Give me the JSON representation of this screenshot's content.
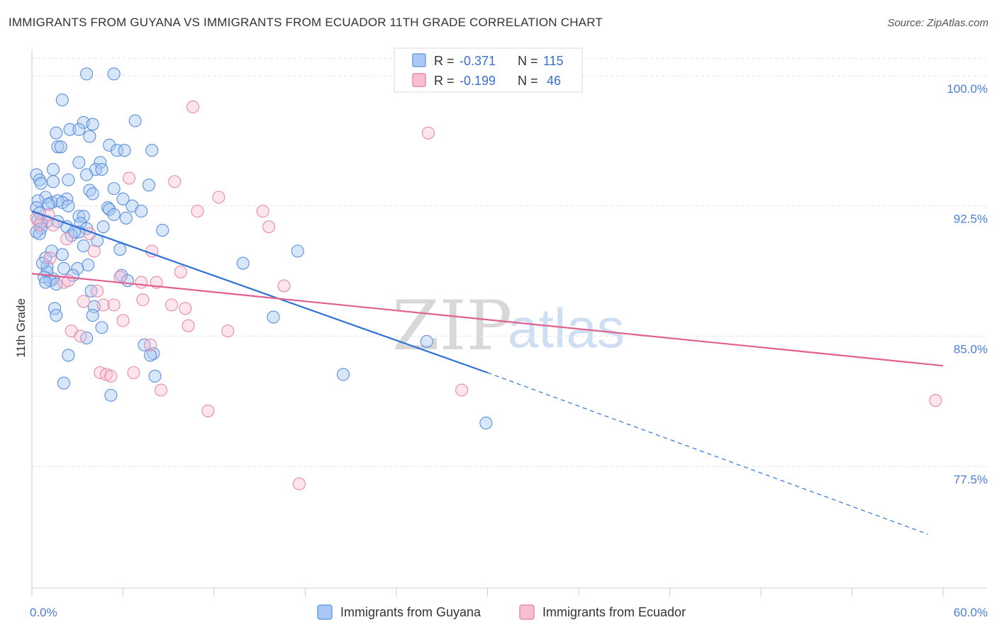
{
  "header": {
    "title": "IMMIGRANTS FROM GUYANA VS IMMIGRANTS FROM ECUADOR 11TH GRADE CORRELATION CHART",
    "source": "Source: ZipAtlas.com"
  },
  "watermark": {
    "zip": "ZIP",
    "atlas": "atlas"
  },
  "legend_top": {
    "rows": [
      {
        "r_label": "R =",
        "r_value": "-0.371",
        "n_label": "N =",
        "n_value": "115",
        "color": "#a9c8f5",
        "border": "#6f9fe0"
      },
      {
        "r_label": "R =",
        "r_value": "-0.199",
        "n_label": "N =",
        "n_value": "46",
        "color": "#f8bfd2",
        "border": "#e88aab"
      }
    ]
  },
  "legend_bottom": {
    "items": [
      {
        "label": "Immigrants from Guyana",
        "color": "#a9c8f5",
        "border": "#6f9fe0"
      },
      {
        "label": "Immigrants from Ecuador",
        "color": "#f8bfd2",
        "border": "#e88aab"
      }
    ]
  },
  "chart_data": {
    "type": "scatter",
    "title": "IMMIGRANTS FROM GUYANA VS IMMIGRANTS FROM ECUADOR 11TH GRADE CORRELATION CHART",
    "xlabel": "",
    "ylabel": "11th Grade",
    "xlim": [
      0,
      60
    ],
    "ylim": [
      70.5,
      101.5
    ],
    "x_tick_labels": [
      "0.0%",
      "60.0%"
    ],
    "y_ticks": [
      77.5,
      85.0,
      92.5,
      100.0
    ],
    "y_tick_labels": [
      "77.5%",
      "85.0%",
      "92.5%",
      "100.0%"
    ],
    "grid": true,
    "colors": {
      "guyana": "#4f86d9",
      "ecuador": "#e56d97",
      "guyana_line": "#2f72d6",
      "ecuador_line": "#e0608f"
    },
    "series": [
      {
        "name": "Immigrants from Guyana",
        "color": "#4f86d9",
        "points": [
          [
            3.6,
            100.1
          ],
          [
            5.4,
            100.1
          ],
          [
            2.0,
            98.6
          ],
          [
            3.4,
            97.3
          ],
          [
            4.0,
            97.2
          ],
          [
            6.8,
            97.4
          ],
          [
            2.5,
            96.9
          ],
          [
            3.1,
            96.9
          ],
          [
            1.6,
            96.7
          ],
          [
            3.8,
            96.5
          ],
          [
            1.7,
            95.9
          ],
          [
            1.9,
            95.9
          ],
          [
            5.1,
            96.0
          ],
          [
            5.6,
            95.7
          ],
          [
            6.1,
            95.7
          ],
          [
            7.9,
            95.7
          ],
          [
            3.1,
            95.0
          ],
          [
            4.5,
            95.0
          ],
          [
            1.4,
            94.6
          ],
          [
            4.2,
            94.6
          ],
          [
            0.3,
            94.3
          ],
          [
            3.6,
            94.3
          ],
          [
            4.6,
            94.6
          ],
          [
            0.5,
            94.0
          ],
          [
            1.4,
            93.9
          ],
          [
            2.4,
            94.0
          ],
          [
            0.6,
            93.8
          ],
          [
            7.7,
            93.7
          ],
          [
            3.8,
            93.4
          ],
          [
            4.0,
            93.2
          ],
          [
            5.4,
            93.5
          ],
          [
            0.9,
            93.0
          ],
          [
            2.3,
            92.9
          ],
          [
            0.4,
            92.8
          ],
          [
            1.3,
            92.7
          ],
          [
            1.7,
            92.8
          ],
          [
            2.0,
            92.7
          ],
          [
            1.1,
            92.6
          ],
          [
            2.4,
            92.5
          ],
          [
            6.6,
            92.5
          ],
          [
            5.0,
            92.4
          ],
          [
            5.1,
            92.3
          ],
          [
            0.3,
            92.4
          ],
          [
            0.5,
            92.1
          ],
          [
            7.2,
            92.2
          ],
          [
            3.1,
            91.9
          ],
          [
            3.4,
            91.9
          ],
          [
            5.4,
            92.0
          ],
          [
            6.2,
            91.8
          ],
          [
            0.6,
            91.6
          ],
          [
            1.0,
            91.6
          ],
          [
            1.7,
            91.6
          ],
          [
            0.4,
            91.7
          ],
          [
            3.2,
            91.5
          ],
          [
            2.3,
            91.3
          ],
          [
            3.6,
            91.2
          ],
          [
            4.7,
            91.3
          ],
          [
            0.6,
            91.2
          ],
          [
            0.3,
            91.0
          ],
          [
            3.1,
            91.0
          ],
          [
            8.6,
            91.1
          ],
          [
            0.5,
            90.9
          ],
          [
            2.6,
            90.8
          ],
          [
            3.4,
            90.2
          ],
          [
            5.8,
            90.0
          ],
          [
            17.5,
            89.9
          ],
          [
            1.3,
            89.9
          ],
          [
            0.9,
            89.5
          ],
          [
            2.0,
            89.7
          ],
          [
            1.0,
            89.0
          ],
          [
            3.7,
            89.1
          ],
          [
            3.0,
            88.9
          ],
          [
            13.9,
            89.2
          ],
          [
            2.1,
            88.9
          ],
          [
            1.0,
            88.7
          ],
          [
            1.4,
            88.3
          ],
          [
            5.9,
            88.5
          ],
          [
            6.3,
            88.2
          ],
          [
            0.8,
            88.4
          ],
          [
            1.2,
            88.2
          ],
          [
            0.9,
            88.1
          ],
          [
            1.6,
            88.0
          ],
          [
            3.9,
            87.6
          ],
          [
            4.1,
            86.7
          ],
          [
            1.5,
            86.6
          ],
          [
            1.6,
            86.2
          ],
          [
            4.0,
            86.2
          ],
          [
            15.9,
            86.1
          ],
          [
            4.6,
            85.5
          ],
          [
            3.6,
            84.9
          ],
          [
            26.0,
            84.7
          ],
          [
            7.4,
            84.5
          ],
          [
            8.0,
            84.0
          ],
          [
            7.8,
            83.9
          ],
          [
            2.4,
            83.9
          ],
          [
            20.5,
            82.8
          ],
          [
            8.1,
            82.7
          ],
          [
            2.1,
            82.3
          ],
          [
            5.2,
            81.6
          ],
          [
            29.9,
            80.0
          ],
          [
            2.7,
            88.5
          ],
          [
            4.3,
            90.5
          ],
          [
            0.7,
            89.2
          ],
          [
            6.0,
            92.9
          ],
          [
            2.8,
            91.0
          ]
        ]
      },
      {
        "name": "Immigrants from Ecuador",
        "color": "#e56d97",
        "points": [
          [
            10.6,
            98.2
          ],
          [
            26.1,
            96.7
          ],
          [
            6.4,
            94.1
          ],
          [
            9.4,
            93.9
          ],
          [
            12.3,
            93.0
          ],
          [
            10.9,
            92.2
          ],
          [
            15.2,
            92.2
          ],
          [
            0.3,
            91.8
          ],
          [
            1.1,
            92.0
          ],
          [
            0.5,
            91.4
          ],
          [
            15.6,
            91.3
          ],
          [
            1.4,
            91.4
          ],
          [
            2.3,
            90.6
          ],
          [
            3.8,
            90.9
          ],
          [
            7.9,
            89.9
          ],
          [
            4.1,
            89.9
          ],
          [
            1.2,
            89.5
          ],
          [
            9.8,
            88.7
          ],
          [
            5.8,
            88.4
          ],
          [
            7.2,
            88.1
          ],
          [
            8.2,
            88.1
          ],
          [
            2.1,
            88.1
          ],
          [
            2.4,
            88.2
          ],
          [
            16.6,
            87.9
          ],
          [
            4.3,
            87.6
          ],
          [
            3.4,
            87.0
          ],
          [
            7.3,
            87.1
          ],
          [
            4.7,
            86.8
          ],
          [
            5.4,
            86.8
          ],
          [
            9.2,
            86.8
          ],
          [
            10.1,
            86.6
          ],
          [
            6.0,
            85.9
          ],
          [
            10.3,
            85.6
          ],
          [
            2.6,
            85.3
          ],
          [
            12.9,
            85.3
          ],
          [
            3.2,
            85.0
          ],
          [
            7.8,
            84.5
          ],
          [
            4.5,
            82.9
          ],
          [
            4.9,
            82.8
          ],
          [
            6.7,
            82.9
          ],
          [
            8.5,
            81.9
          ],
          [
            11.6,
            80.7
          ],
          [
            28.3,
            81.9
          ],
          [
            59.5,
            81.3
          ],
          [
            17.6,
            76.5
          ],
          [
            5.2,
            82.7
          ]
        ]
      }
    ],
    "trend_lines": [
      {
        "series": "Immigrants from Guyana",
        "x0": 0,
        "y0": 92.2,
        "x1": 30,
        "y1": 82.9,
        "dashed_to_x": 59,
        "dashed_to_y": 73.6
      },
      {
        "series": "Immigrants from Ecuador",
        "x0": 0,
        "y0": 88.6,
        "x1": 60,
        "y1": 83.3
      }
    ]
  }
}
